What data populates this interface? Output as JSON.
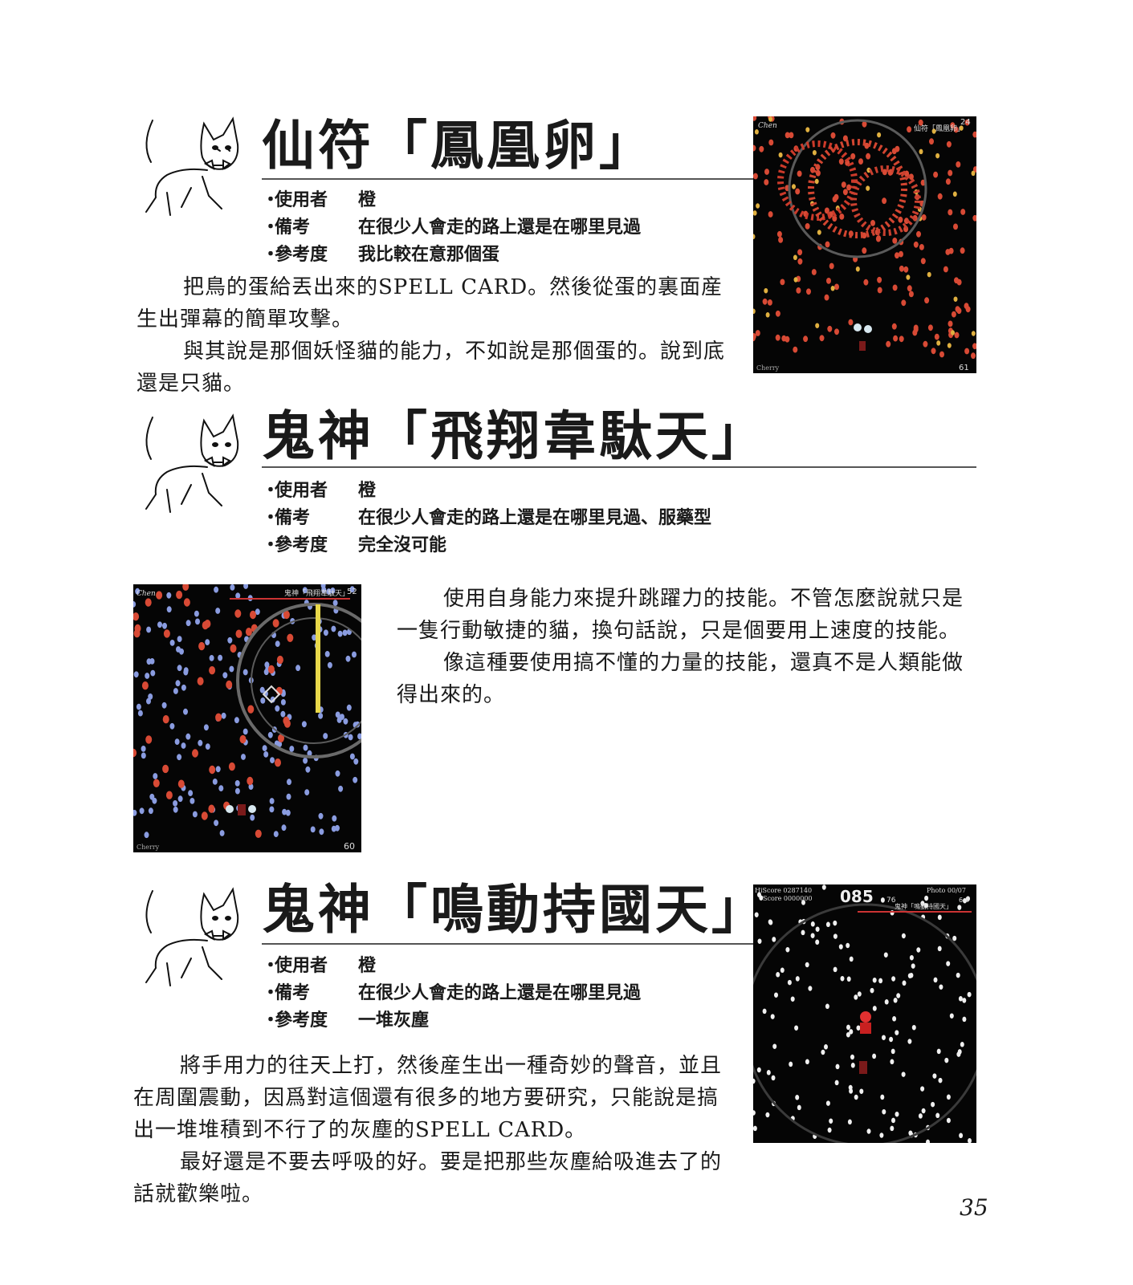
{
  "sections": [
    {
      "title": "仙符「鳳凰卵」",
      "meta": [
        {
          "bullet": "・",
          "key": "使用者",
          "value": "橙"
        },
        {
          "bullet": "・",
          "key": "備考",
          "value": "在很少人會走的路上還是在哪里見過"
        },
        {
          "bullet": "・",
          "key": "參考度",
          "value": "我比較在意那個蛋"
        }
      ],
      "paragraphs": [
        "把鳥的蛋給丟出來的SPELL CARD。然後從蛋的裏面産生出彈幕的簡單攻擊。",
        "與其說是那個妖怪貓的能力，不如說是那個蛋的。說到底還是只貓。"
      ]
    },
    {
      "title": "鬼神「飛翔韋駄天」",
      "meta": [
        {
          "bullet": "・",
          "key": "使用者",
          "value": "橙"
        },
        {
          "bullet": "・",
          "key": "備考",
          "value": "在很少人會走的路上還是在哪里見過、服藥型"
        },
        {
          "bullet": "・",
          "key": "參考度",
          "value": "完全沒可能"
        }
      ],
      "paragraphs": [
        "使用自身能力來提升跳躍力的技能。不管怎麼說就只是一隻行動敏捷的貓，換句話說，只是個要用上速度的技能。",
        "像這種要使用搞不懂的力量的技能，還真不是人類能做得出來的。"
      ]
    },
    {
      "title": "鬼神「鳴動持國天」",
      "meta": [
        {
          "bullet": "・",
          "key": "使用者",
          "value": "橙"
        },
        {
          "bullet": "・",
          "key": "備考",
          "value": "在很少人會走的路上還是在哪里見過"
        },
        {
          "bullet": "・",
          "key": "參考度",
          "value": "一堆灰塵"
        }
      ],
      "paragraphs": [
        "將手用力的往天上打，然後産生出一種奇妙的聲音，並且在周圍震動，因爲對這個還有很多的地方要研究，只能說是搞出一堆堆積到不行了的灰塵的SPELL CARD。",
        "最好還是不要去呼吸的好。要是把那些灰塵給吸進去了的話就歡樂啦。"
      ]
    }
  ],
  "screenshots": [
    {
      "name": "Chen",
      "spell": "仙符「鳳凰卵」",
      "counter_top": "24",
      "counter_bottom": "61",
      "bottom_text": "Cherry"
    },
    {
      "name": "Chen",
      "spell": "鬼神「飛翔韋駄天」",
      "counter_top": "52",
      "counter_bottom": "60",
      "bottom_text": "Cherry"
    },
    {
      "hiscore": "HiScore 0287140",
      "score": "Score 0000000",
      "timer": "085",
      "timer_sub": "76",
      "photo": "Photo 00/07",
      "level": "6-5",
      "spell": "鬼神「鳴動持國天」"
    }
  ],
  "page_number": "35"
}
